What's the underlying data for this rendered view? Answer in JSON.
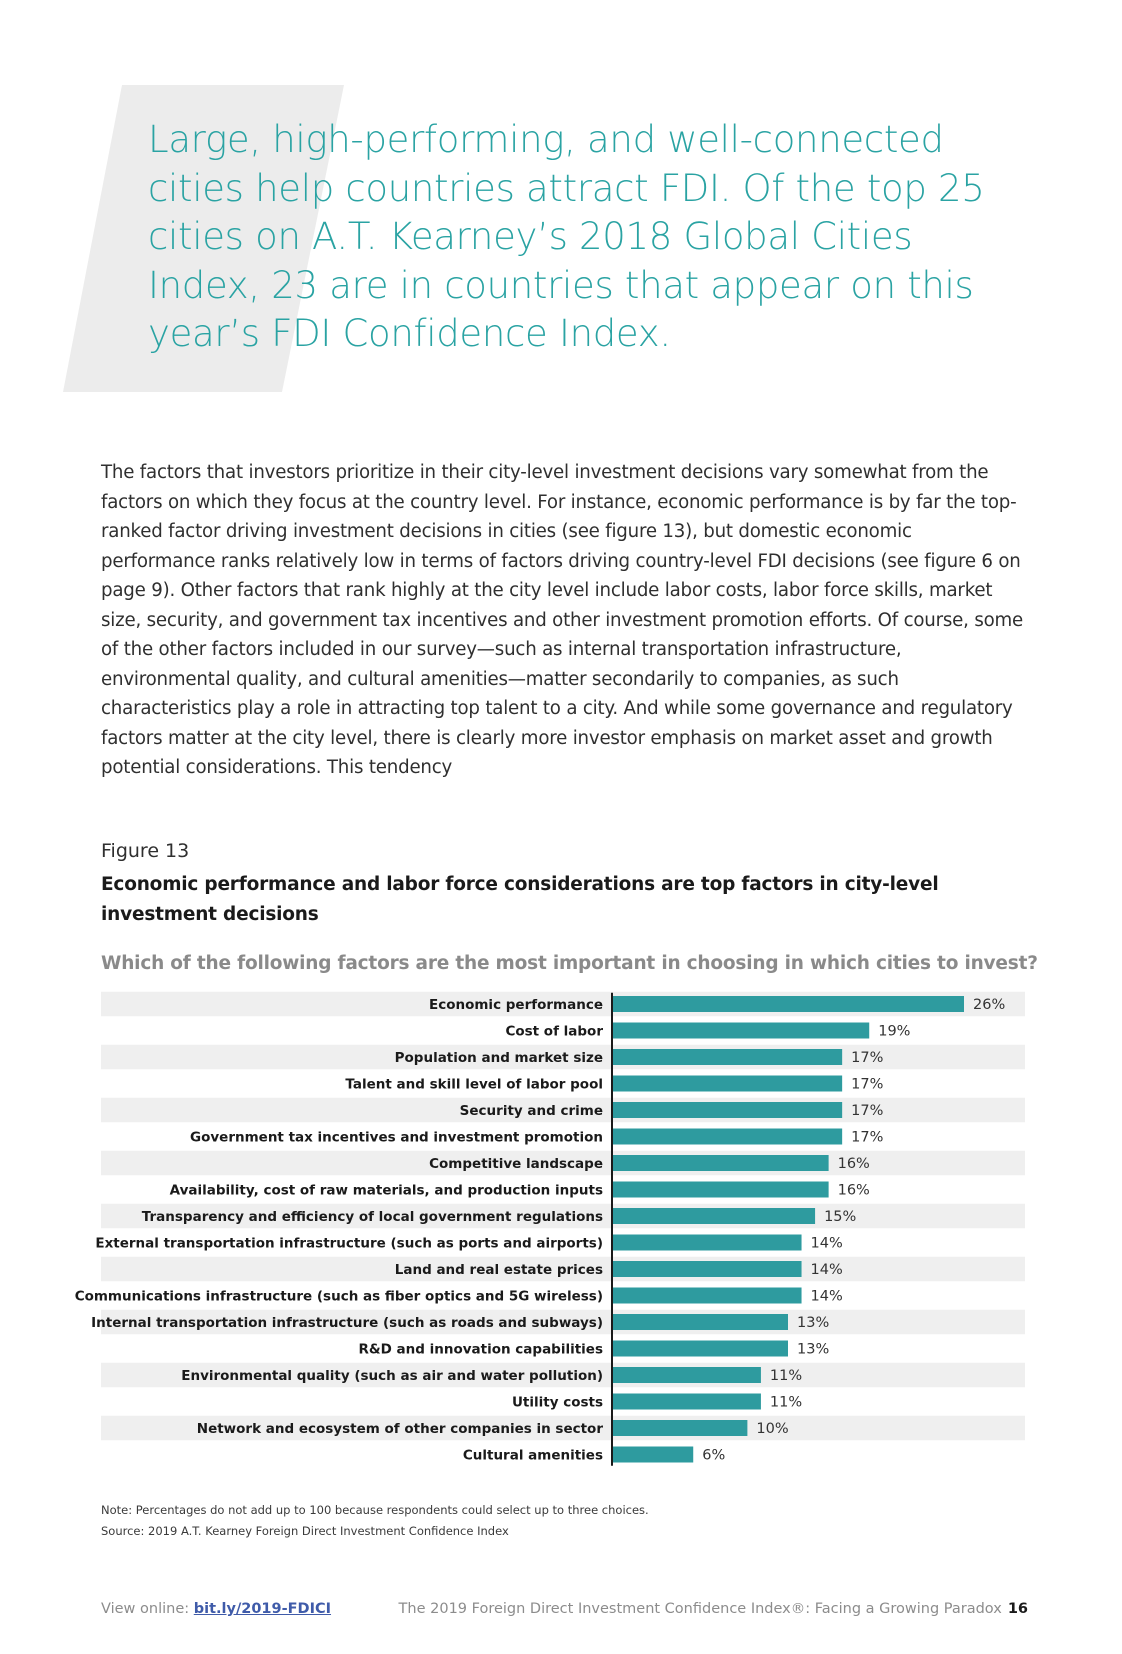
{
  "pull_quote": "Large, high-performing, and well-connected cities help countries attract FDI. Of the top 25 cities on A.T. Kearney’s 2018 Global Cities Index, 23 are in countries that appear on this year’s FDI Confidence Index.",
  "body_text": "The factors that investors prioritize in their city-level investment decisions vary somewhat from the factors on which they focus at the country level. For instance, economic performance is by far the top-ranked factor driving investment decisions in cities (see figure 13), but domestic economic performance ranks relatively low in terms of factors driving country-level FDI decisions (see figure 6 on page 9). Other factors that rank highly at the city level include labor costs, labor force skills, market size, security, and government tax incentives and other investment promotion efforts. Of course, some of the other factors included in our survey—such as internal transportation infrastructure, environmental quality, and cultural amenities—matter secondarily to companies, as such characteristics play a role in attracting top talent to a city. And while some governance and regulatory factors matter at the city level, there is clearly more investor emphasis on market asset and growth potential considerations. This tendency",
  "figure": {
    "label": "Figure 13",
    "title": "Economic performance and labor force considerations are top factors in city-level investment decisions",
    "question": "Which of the following factors are the most important in choosing in which cities to invest?"
  },
  "chart_data": {
    "type": "bar",
    "orientation": "horizontal",
    "title": "Which of the following factors are the most important in choosing in which cities to invest?",
    "xlabel": "",
    "ylabel": "",
    "unit": "%",
    "xlim": [
      0,
      26
    ],
    "categories": [
      "Economic performance",
      "Cost of labor",
      "Population and market size",
      "Talent and skill level of labor pool",
      "Security and crime",
      "Government tax incentives and investment promotion",
      "Competitive landscape",
      "Availability, cost of raw materials, and production inputs",
      "Transparency and efficiency of local government regulations",
      "External transportation infrastructure (such as ports and airports)",
      "Land and real estate prices",
      "Communications infrastructure (such as fiber optics and 5G wireless)",
      "Internal transportation infrastructure (such as roads and subways)",
      "R&D and innovation capabilities",
      "Environmental quality (such as air and water pollution)",
      "Utility costs",
      "Network and ecosystem of other companies in sector",
      "Cultural amenities"
    ],
    "values": [
      26,
      19,
      17,
      17,
      17,
      17,
      16,
      16,
      15,
      14,
      14,
      14,
      13,
      13,
      11,
      11,
      10,
      6
    ],
    "data_labels": [
      "26%",
      "19%",
      "17%",
      "17%",
      "17%",
      "17%",
      "16%",
      "16%",
      "15%",
      "14%",
      "14%",
      "14%",
      "13%",
      "13%",
      "11%",
      "11%",
      "10%",
      "6%"
    ],
    "bar_color": "#2e9b9f",
    "grid": false,
    "legend": "none"
  },
  "notes": {
    "note": "Note: Percentages do not add up to 100 because respondents could select up to three choices.",
    "source": "Source: 2019 A.T. Kearney Foreign Direct Investment Confidence Index"
  },
  "footer": {
    "view_online_label": "View online: ",
    "link_text": "bit.ly/2019-FDICI",
    "publication_title": "The 2019 Foreign Direct Investment Confidence Index®: Facing a Growing Paradox",
    "page_number": "16"
  },
  "colors": {
    "accent": "#2aa3a3",
    "bar": "#2e9b9f",
    "row_band": "#efefef",
    "link": "#3f5ba9"
  }
}
